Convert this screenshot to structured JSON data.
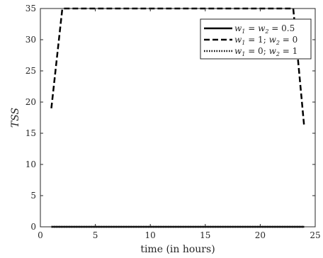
{
  "chart_data": {
    "type": "line",
    "title": "",
    "xlabel": "time (in hours)",
    "ylabel": "TSS",
    "xlim": [
      0,
      25
    ],
    "ylim": [
      0,
      35
    ],
    "xticks": [
      0,
      5,
      10,
      15,
      20,
      25
    ],
    "yticks": [
      0,
      5,
      10,
      15,
      20,
      25,
      30,
      35
    ],
    "grid": false,
    "legend_position": "top-right",
    "series": [
      {
        "name": "w1 = w2 = 0.5",
        "style": "solid",
        "color": "#000000",
        "x": [
          1,
          24
        ],
        "y": [
          0,
          0
        ]
      },
      {
        "name": "w1 = 1; w2 = 0",
        "style": "dashed",
        "color": "#000000",
        "x": [
          1,
          2,
          23,
          24
        ],
        "y": [
          19,
          35,
          35,
          16
        ]
      },
      {
        "name": "w1 = 0; w2 = 1",
        "style": "dotted",
        "color": "#000000",
        "x": [
          1,
          24
        ],
        "y": [
          0,
          0
        ]
      }
    ]
  }
}
